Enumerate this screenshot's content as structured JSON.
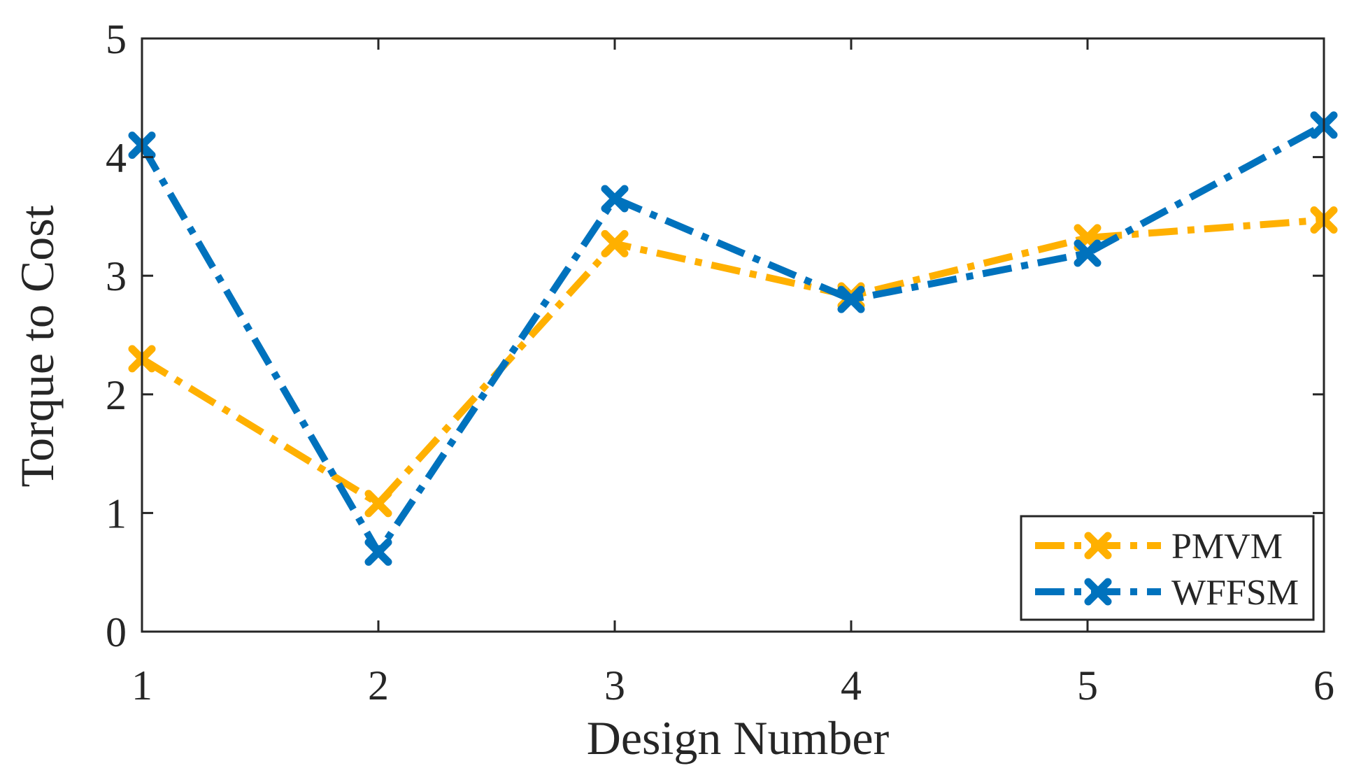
{
  "chart_data": {
    "type": "line",
    "title": "",
    "xlabel": "Design Number",
    "ylabel": "Torque to Cost",
    "x": [
      1,
      2,
      3,
      4,
      5,
      6
    ],
    "xticks": [
      "1",
      "2",
      "3",
      "4",
      "5",
      "6"
    ],
    "yticks": [
      "0",
      "1",
      "2",
      "3",
      "4",
      "5"
    ],
    "xlim": [
      1,
      6
    ],
    "ylim": [
      0,
      5
    ],
    "grid": false,
    "legend_position": "bottom-right",
    "series": [
      {
        "name": "PMVM",
        "color": "#FFB000",
        "marker": "x",
        "line_style": "dash-dot",
        "values": [
          2.3,
          1.08,
          3.27,
          2.83,
          3.32,
          3.47
        ]
      },
      {
        "name": "WFFSM",
        "color": "#0072BD",
        "marker": "x",
        "line_style": "dash-dot",
        "values": [
          4.1,
          0.67,
          3.65,
          2.8,
          3.19,
          4.27
        ]
      }
    ]
  }
}
